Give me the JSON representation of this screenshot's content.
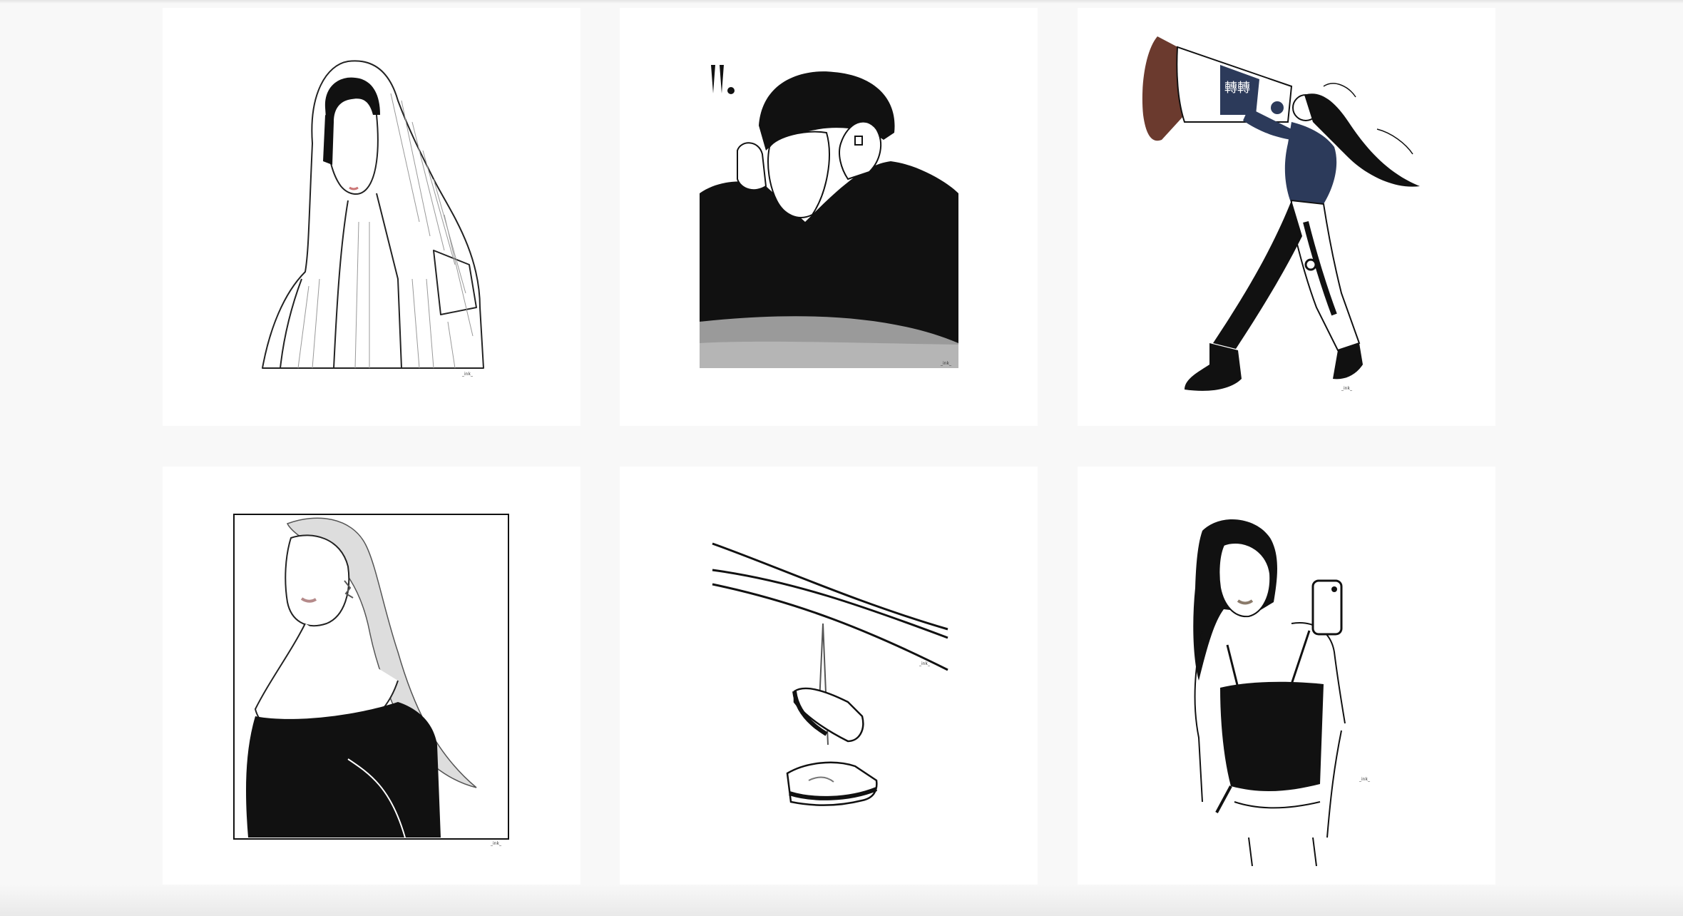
{
  "gallery": {
    "columns": 3,
    "rows": 2,
    "items": [
      {
        "subject": "girl-in-striped-hood",
        "signature": "_ink_"
      },
      {
        "subject": "figure-in-black-beanie",
        "signature": "_ink_"
      },
      {
        "subject": "dancer-with-megaphone",
        "signature": "_ink_",
        "accent": "#6b3a2e",
        "poster_text": "轉轉"
      },
      {
        "subject": "blonde-girl-off-shoulder",
        "signature": "_ink_"
      },
      {
        "subject": "sneakers-on-power-line",
        "signature": "_ink_"
      },
      {
        "subject": "girl-phone-selfie",
        "signature": "_ink_"
      }
    ]
  },
  "colors": {
    "page_bg": "#f8f8f8",
    "tile_bg": "#ffffff",
    "ink": "#111111",
    "gray_fill": "#9a9a9a",
    "navy": "#2c3a5a",
    "brown": "#6b3a2e"
  }
}
